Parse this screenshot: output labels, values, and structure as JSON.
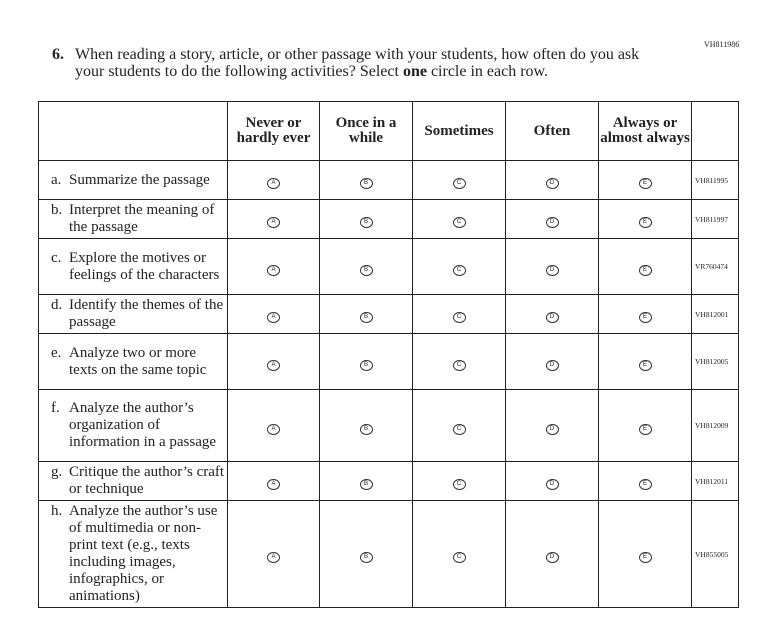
{
  "header": {
    "code": "VH811986"
  },
  "question": {
    "number": "6.",
    "text_before": "When reading a story, article, or other passage with your students, how often do you ask your students to do the following activities? Select ",
    "emphasis": "one",
    "text_after": " circle in each row."
  },
  "table": {
    "columns": [
      "Never or hardly ever",
      "Once in a while",
      "Sometimes",
      "Often",
      "Always or almost always"
    ],
    "bubble_letters": [
      "A",
      "B",
      "C",
      "D",
      "E"
    ],
    "rows": [
      {
        "letter": "a.",
        "label": "Summarize the passage",
        "code": "VH811995"
      },
      {
        "letter": "b.",
        "label": "Interpret the meaning of the passage",
        "code": "VH811997"
      },
      {
        "letter": "c.",
        "label": "Explore the motives or feelings of the characters",
        "code": "VR760474"
      },
      {
        "letter": "d.",
        "label": "Identify the themes of the passage",
        "code": "VH812001"
      },
      {
        "letter": "e.",
        "label": "Analyze two or more texts on the same topic",
        "code": "VH812005"
      },
      {
        "letter": "f.",
        "label": "Analyze the author’s organization of information in a passage",
        "code": "VH812009"
      },
      {
        "letter": "g.",
        "label": "Critique the author’s craft or technique",
        "code": "VH812011"
      },
      {
        "letter": "h.",
        "label": "Analyze the author’s use of multimedia or non-print text (e.g., texts including images, infographics, or animations)",
        "code": "VH855005"
      }
    ]
  }
}
